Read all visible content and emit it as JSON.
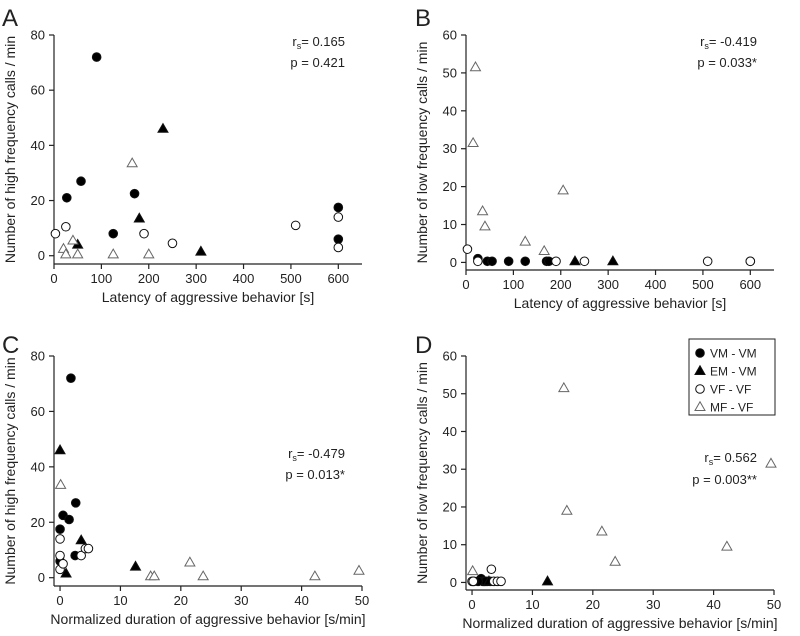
{
  "figure_legend": {
    "items": [
      {
        "key": "VM",
        "label": "VM - VM",
        "marker": "circle",
        "fill": "#000000"
      },
      {
        "key": "EM",
        "label": "EM - VM",
        "marker": "triangle",
        "fill": "#000000"
      },
      {
        "key": "VF",
        "label": "VF - VF",
        "marker": "circle",
        "fill": "#ffffff"
      },
      {
        "key": "MF",
        "label": "MF - VF",
        "marker": "triangle",
        "fill": "#ffffff"
      }
    ]
  },
  "chart_data": [
    {
      "type": "scatter",
      "panel": "A",
      "xlabel": "Latency of aggressive behavior [s]",
      "ylabel": "Number of high frequency calls / min",
      "xlim": [
        0,
        650
      ],
      "ylim": [
        -3,
        80
      ],
      "xticks": [
        0,
        100,
        200,
        300,
        400,
        500,
        600
      ],
      "yticks": [
        0,
        20,
        40,
        60,
        80
      ],
      "rs": "0.165",
      "p": "0.421",
      "series": [
        {
          "name": "VM - VM",
          "points": [
            [
              90,
              72
            ],
            [
              57,
              27
            ],
            [
              27,
              21
            ],
            [
              170,
              22.5
            ],
            [
              125,
              8
            ],
            [
              600,
              17.5
            ],
            [
              600,
              6
            ]
          ]
        },
        {
          "name": "EM - VM",
          "points": [
            [
              230,
              46
            ],
            [
              180,
              13.5
            ],
            [
              50,
              4
            ],
            [
              310,
              1.5
            ]
          ]
        },
        {
          "name": "VF - VF",
          "points": [
            [
              3,
              8
            ],
            [
              25,
              10.5
            ],
            [
              190,
              8
            ],
            [
              250,
              4.5
            ],
            [
              510,
              11
            ],
            [
              600,
              14
            ],
            [
              600,
              3
            ]
          ]
        },
        {
          "name": "MF - VF",
          "points": [
            [
              165,
              33.5
            ],
            [
              40,
              5.5
            ],
            [
              20,
              2.5
            ],
            [
              25,
              0.5
            ],
            [
              50,
              0.5
            ],
            [
              125,
              0.5
            ],
            [
              200,
              0.5
            ]
          ]
        }
      ]
    },
    {
      "type": "scatter",
      "panel": "B",
      "xlabel": "Latency of aggressive behavior [s]",
      "ylabel": "Number of low frequency calls / min",
      "xlim": [
        0,
        650
      ],
      "ylim": [
        -2,
        60
      ],
      "xticks": [
        0,
        100,
        200,
        300,
        400,
        500,
        600
      ],
      "yticks": [
        0,
        10,
        20,
        30,
        40,
        50,
        60
      ],
      "rs": "-0.419",
      "p": "0.033*",
      "series": [
        {
          "name": "VM - VM",
          "points": [
            [
              25,
              1
            ],
            [
              45,
              0.3
            ],
            [
              55,
              0.3
            ],
            [
              90,
              0.3
            ],
            [
              125,
              0.3
            ],
            [
              170,
              0.3
            ],
            [
              175,
              0.3
            ]
          ]
        },
        {
          "name": "EM - VM",
          "points": [
            [
              230,
              0.3
            ],
            [
              310,
              0.3
            ]
          ]
        },
        {
          "name": "VF - VF",
          "points": [
            [
              3,
              3.5
            ],
            [
              25,
              0.3
            ],
            [
              190,
              0.3
            ],
            [
              250,
              0.3
            ],
            [
              510,
              0.3
            ],
            [
              600,
              0.3
            ],
            [
              600,
              0.3
            ]
          ]
        },
        {
          "name": "MF - VF",
          "points": [
            [
              20,
              51.5
            ],
            [
              15,
              31.5
            ],
            [
              35,
              13.5
            ],
            [
              40,
              9.5
            ],
            [
              125,
              5.5
            ],
            [
              165,
              3
            ],
            [
              205,
              19
            ]
          ]
        }
      ]
    },
    {
      "type": "scatter",
      "panel": "C",
      "xlabel": "Normalized duration of aggressive behavior [s/min]",
      "ylabel": "Number of high frequency calls / min",
      "xlim": [
        -1,
        50
      ],
      "ylim": [
        -3,
        80
      ],
      "xticks": [
        0,
        10,
        20,
        30,
        40,
        50
      ],
      "yticks": [
        0,
        20,
        40,
        60,
        80
      ],
      "rs": "-0.479",
      "p": "0.013*",
      "series": [
        {
          "name": "VM - VM",
          "points": [
            [
              1.8,
              72
            ],
            [
              2.6,
              27
            ],
            [
              0.5,
              22.5
            ],
            [
              1.5,
              21
            ],
            [
              0,
              17.5
            ],
            [
              2.5,
              8
            ],
            [
              0,
              6
            ]
          ]
        },
        {
          "name": "EM - VM",
          "points": [
            [
              0,
              46
            ],
            [
              3.5,
              13.5
            ],
            [
              12.5,
              4
            ],
            [
              1,
              1.5
            ]
          ]
        },
        {
          "name": "VF - VF",
          "points": [
            [
              0,
              14
            ],
            [
              0,
              8
            ],
            [
              3.5,
              8
            ],
            [
              4.2,
              10.5
            ],
            [
              4.7,
              10.5
            ],
            [
              0,
              3
            ],
            [
              0.5,
              5
            ]
          ]
        },
        {
          "name": "MF - VF",
          "points": [
            [
              0.1,
              33.5
            ],
            [
              21.5,
              5.5
            ],
            [
              15,
              0.5
            ],
            [
              15.6,
              0.5
            ],
            [
              23.7,
              0.5
            ],
            [
              42.2,
              0.5
            ],
            [
              49.5,
              2.5
            ]
          ]
        }
      ]
    },
    {
      "type": "scatter",
      "panel": "D",
      "xlabel": "Normalized duration of aggressive behavior [s/min]",
      "ylabel": "Number of low frequency calls / min",
      "xlim": [
        -1,
        50
      ],
      "ylim": [
        -2,
        60
      ],
      "xticks": [
        0,
        10,
        20,
        30,
        40,
        50
      ],
      "yticks": [
        0,
        10,
        20,
        30,
        40,
        50,
        60
      ],
      "rs": "0.562",
      "p": "0.003**",
      "series": [
        {
          "name": "VM - VM",
          "points": [
            [
              1.5,
              1
            ],
            [
              2,
              0.3
            ],
            [
              2.5,
              0.3
            ],
            [
              3,
              0.3
            ],
            [
              1.8,
              0.3
            ],
            [
              2.2,
              0.3
            ],
            [
              1,
              0.3
            ]
          ]
        },
        {
          "name": "EM - VM",
          "points": [
            [
              12.5,
              0.3
            ],
            [
              2.8,
              0.3
            ]
          ]
        },
        {
          "name": "VF - VF",
          "points": [
            [
              0,
              0.3
            ],
            [
              0.3,
              0.3
            ],
            [
              3.2,
              3.5
            ],
            [
              3.6,
              0.3
            ],
            [
              4.2,
              0.3
            ],
            [
              4.8,
              0.3
            ],
            [
              0.2,
              0.3
            ]
          ]
        },
        {
          "name": "MF - VF",
          "points": [
            [
              15.2,
              51.5
            ],
            [
              49.5,
              31.5
            ],
            [
              15.7,
              19
            ],
            [
              21.5,
              13.5
            ],
            [
              42.2,
              9.5
            ],
            [
              23.7,
              5.5
            ],
            [
              0.1,
              3
            ]
          ]
        }
      ]
    }
  ]
}
